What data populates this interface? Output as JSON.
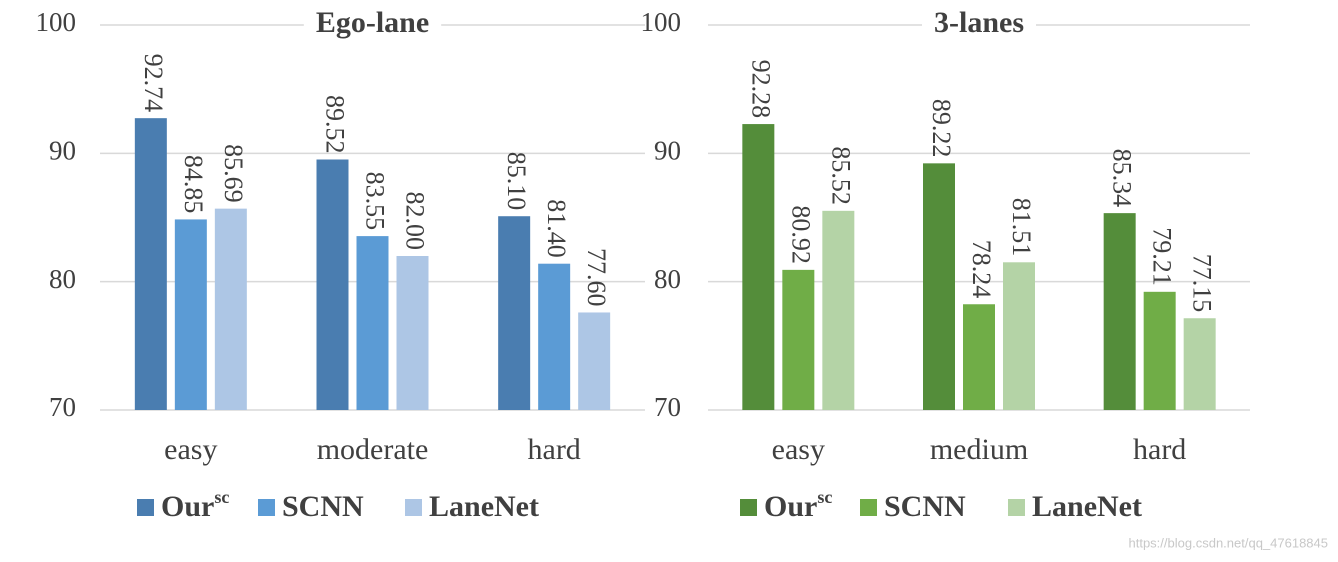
{
  "chart_data": [
    {
      "type": "bar",
      "title": "Ego-lane",
      "categories": [
        "easy",
        "moderate",
        "hard"
      ],
      "series": [
        {
          "name": "Our",
          "superscript": "sc",
          "color": "#4a7db0",
          "values": [
            92.74,
            89.52,
            85.1
          ],
          "value_labels": [
            "92.74",
            "89.52",
            "85.10"
          ]
        },
        {
          "name": "SCNN",
          "color": "#5b9bd5",
          "values": [
            84.85,
            83.55,
            81.4
          ],
          "value_labels": [
            "84.85",
            "83.55",
            "81.40"
          ]
        },
        {
          "name": "LaneNet",
          "color": "#adc6e5",
          "values": [
            85.69,
            82.0,
            77.6
          ],
          "value_labels": [
            "85.69",
            "82.00",
            "77.60"
          ]
        }
      ],
      "ylim": [
        70,
        100
      ],
      "yticks": [
        70,
        80,
        90,
        100
      ],
      "grid": true
    },
    {
      "type": "bar",
      "title": "3-lanes",
      "categories": [
        "easy",
        "medium",
        "hard"
      ],
      "series": [
        {
          "name": "Our",
          "superscript": "sc",
          "color": "#548d3a",
          "values": [
            92.28,
            89.22,
            85.34
          ],
          "value_labels": [
            "92.28",
            "89.22",
            "85.34"
          ]
        },
        {
          "name": "SCNN",
          "color": "#70ad47",
          "values": [
            80.92,
            78.24,
            79.21
          ],
          "value_labels": [
            "80.92",
            "78.24",
            "79.21"
          ]
        },
        {
          "name": "LaneNet",
          "color": "#b4d3a6",
          "values": [
            85.52,
            81.51,
            77.15
          ],
          "value_labels": [
            "85.52",
            "81.51",
            "77.15"
          ]
        }
      ],
      "ylim": [
        70,
        100
      ],
      "yticks": [
        70,
        80,
        90,
        100
      ],
      "grid": true
    }
  ],
  "watermark": "https://blog.csdn.net/qq_47618845"
}
